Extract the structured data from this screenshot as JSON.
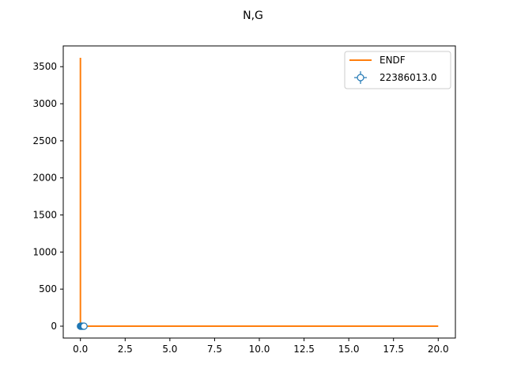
{
  "chart_data": {
    "type": "line",
    "title": "N,G",
    "xlabel": "",
    "ylabel": "",
    "xlim": [
      -0.96,
      20.96
    ],
    "ylim": [
      -160,
      3780
    ],
    "xticks": [
      0,
      2.5,
      5,
      7.5,
      10,
      12.5,
      15,
      17.5,
      20
    ],
    "xtick_labels": [
      "0.0",
      "2.5",
      "5.0",
      "7.5",
      "10.0",
      "12.5",
      "15.0",
      "17.5",
      "20.0"
    ],
    "yticks": [
      0,
      500,
      1000,
      1500,
      2000,
      2500,
      3000,
      3500
    ],
    "ytick_labels": [
      "0",
      "500",
      "1000",
      "1500",
      "2000",
      "2500",
      "3000",
      "3500"
    ],
    "grid": false,
    "legend_position": "top-right",
    "series": [
      {
        "name": "ENDF",
        "kind": "line",
        "color": "#ff7f0e",
        "x": [
          0.0,
          0.0,
          0.0001,
          0.01,
          0.05,
          0.2,
          1,
          5,
          10,
          15,
          20
        ],
        "y": [
          3620,
          0,
          0,
          0,
          0,
          0,
          0,
          0,
          0,
          0,
          0
        ]
      },
      {
        "name": "22386013.0",
        "kind": "errorbar",
        "color": "#1f77b4",
        "marker": "open-circle",
        "x": [
          0.0,
          0.02,
          0.05,
          0.08,
          0.12,
          0.16,
          0.2
        ],
        "y": [
          0,
          0,
          0,
          0,
          0,
          0,
          0
        ]
      }
    ]
  }
}
